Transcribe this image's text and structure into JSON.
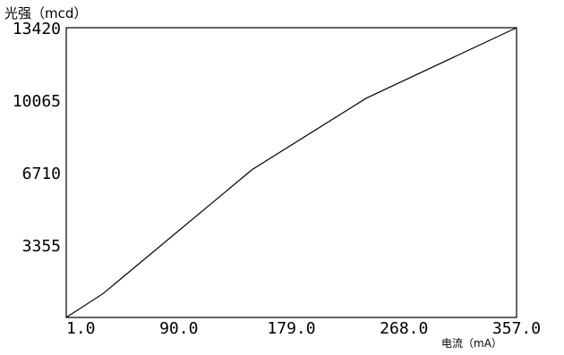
{
  "chart_data": {
    "type": "line",
    "ylabel": "光强（mcd）",
    "xlabel": "电流（mA）",
    "xlim": [
      1.0,
      357.0
    ],
    "ylim": [
      0,
      13420
    ],
    "xticks": [
      1.0,
      90.0,
      179.0,
      268.0,
      357.0
    ],
    "xtick_labels": [
      "1.0",
      "90.0",
      "179.0",
      "268.0",
      "357.0"
    ],
    "yticks": [
      3355,
      6710,
      10065,
      13420
    ],
    "ytick_labels": [
      "3355",
      "6710",
      "10065",
      "13420"
    ],
    "grid": false,
    "series": [
      {
        "x": [
          1.0,
          30.0,
          148.0,
          238.0,
          357.0
        ],
        "y": [
          0,
          1100,
          6850,
          10150,
          13420
        ]
      }
    ]
  }
}
